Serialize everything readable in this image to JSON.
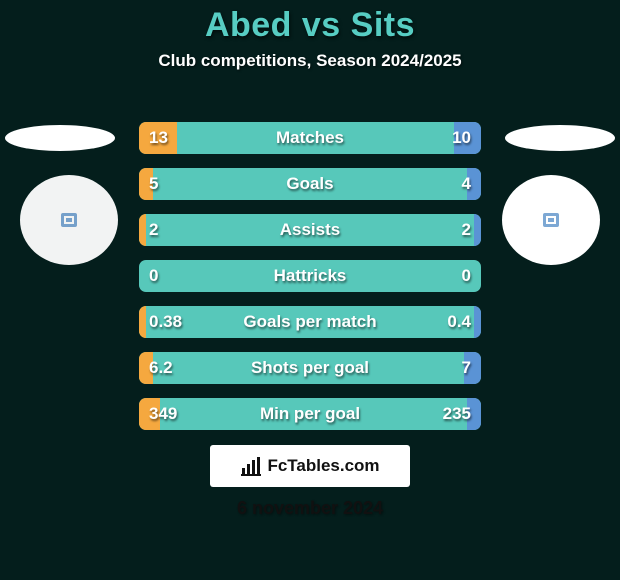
{
  "type": "infographic",
  "background_color": "#041e1c",
  "title": "Abed vs Sits",
  "title_color": "#57cdc3",
  "subtitle": "Club competitions, Season 2024/2025",
  "subtitle_color": "#ffffff",
  "row_track_color": "#57c8ba",
  "left_fill_color": "#f5a83f",
  "right_fill_color": "#5a93d5",
  "text_color": "#ffffff",
  "side_circle_inner_color": "#7da8d4",
  "rows": [
    {
      "label": "Matches",
      "left": "13",
      "right": "10",
      "left_pct": 11,
      "right_pct": 8
    },
    {
      "label": "Goals",
      "left": "5",
      "right": "4",
      "left_pct": 4,
      "right_pct": 4
    },
    {
      "label": "Assists",
      "left": "2",
      "right": "2",
      "left_pct": 2,
      "right_pct": 2
    },
    {
      "label": "Hattricks",
      "left": "0",
      "right": "0",
      "left_pct": 0,
      "right_pct": 0
    },
    {
      "label": "Goals per match",
      "left": "0.38",
      "right": "0.4",
      "left_pct": 2,
      "right_pct": 2
    },
    {
      "label": "Shots per goal",
      "left": "6.2",
      "right": "7",
      "left_pct": 4,
      "right_pct": 5
    },
    {
      "label": "Min per goal",
      "left": "349",
      "right": "235",
      "left_pct": 6,
      "right_pct": 4
    }
  ],
  "footer_brand": "FcTables.com",
  "date": "6 november 2024"
}
